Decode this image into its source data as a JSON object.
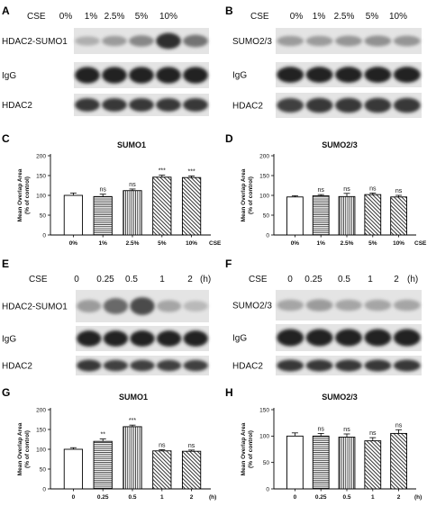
{
  "panels": {
    "A": {
      "letter": "A",
      "head": "CSE",
      "lanes": [
        "0%",
        "1%",
        "2.5%",
        "5%",
        "10%"
      ],
      "blots": [
        {
          "label": "HDAC2-SUMO1",
          "intensity": [
            0.25,
            0.35,
            0.45,
            0.9,
            0.55
          ]
        },
        {
          "label": "IgG",
          "intensity": [
            0.95,
            0.95,
            0.95,
            0.95,
            0.95
          ]
        },
        {
          "label": "HDAC2",
          "intensity": [
            0.85,
            0.85,
            0.85,
            0.85,
            0.85
          ]
        }
      ]
    },
    "B": {
      "letter": "B",
      "head": "CSE",
      "lanes": [
        "0%",
        "1%",
        "2.5%",
        "5%",
        "10%"
      ],
      "blots": [
        {
          "label": "SUMO2/3",
          "intensity": [
            0.35,
            0.35,
            0.38,
            0.4,
            0.38
          ]
        },
        {
          "label": "IgG",
          "intensity": [
            0.95,
            0.95,
            0.95,
            0.95,
            0.95
          ]
        },
        {
          "label": "HDAC2",
          "intensity": [
            0.8,
            0.85,
            0.85,
            0.85,
            0.85
          ]
        }
      ]
    },
    "E": {
      "letter": "E",
      "head": "CSE",
      "lanes": [
        "0",
        "0.25",
        "0.5",
        "1",
        "2"
      ],
      "unit": "(h)",
      "blots": [
        {
          "label": "HDAC2-SUMO1",
          "intensity": [
            0.35,
            0.6,
            0.75,
            0.3,
            0.2
          ]
        },
        {
          "label": "IgG",
          "intensity": [
            0.95,
            0.95,
            0.95,
            0.95,
            0.95
          ]
        },
        {
          "label": "HDAC2",
          "intensity": [
            0.85,
            0.8,
            0.8,
            0.8,
            0.8
          ]
        }
      ]
    },
    "F": {
      "letter": "F",
      "head": "CSE",
      "lanes": [
        "0",
        "0.25",
        "0.5",
        "1",
        "2"
      ],
      "unit": "(h)",
      "blots": [
        {
          "label": "SUMO2/3",
          "intensity": [
            0.3,
            0.35,
            0.3,
            0.3,
            0.3
          ]
        },
        {
          "label": "IgG",
          "intensity": [
            0.95,
            0.95,
            0.95,
            0.95,
            0.95
          ]
        },
        {
          "label": "HDAC2",
          "intensity": [
            0.85,
            0.85,
            0.85,
            0.85,
            0.85
          ]
        }
      ]
    }
  },
  "chart_data": [
    {
      "panel": "C",
      "type": "bar",
      "title": "SUMO1",
      "ylabel": "Mean Overlap Area",
      "ylabel2": "(% of control)",
      "categories": [
        "0%",
        "1%",
        "2.5%",
        "5%",
        "10%"
      ],
      "xunit": "CSE",
      "values": [
        100,
        97,
        112,
        146,
        145
      ],
      "errors": [
        6,
        6,
        4,
        5,
        4
      ],
      "significance": [
        "",
        "ns",
        "ns",
        "***",
        "***"
      ],
      "patterns": [
        "none",
        "horizontal",
        "vertical",
        "diagonal",
        "diagonal"
      ],
      "ylim": [
        0,
        200
      ],
      "yticks": [
        0,
        50,
        100,
        150,
        200
      ]
    },
    {
      "panel": "D",
      "type": "bar",
      "title": "SUMO2/3",
      "ylabel": "Mean Overlap Area",
      "ylabel2": "(% of control)",
      "categories": [
        "0%",
        "1%",
        "2.5%",
        "5%",
        "10%"
      ],
      "xunit": "CSE",
      "values": [
        96,
        99,
        97,
        102,
        96
      ],
      "errors": [
        3,
        3,
        8,
        4,
        4
      ],
      "significance": [
        "",
        "ns",
        "ns",
        "ns",
        "ns"
      ],
      "patterns": [
        "none",
        "horizontal",
        "vertical",
        "diagonal",
        "diagonal"
      ],
      "ylim": [
        0,
        200
      ],
      "yticks": [
        0,
        50,
        100,
        150,
        200
      ]
    },
    {
      "panel": "G",
      "type": "bar",
      "title": "SUMO1",
      "ylabel": "Mean Overlap Area",
      "ylabel2": "(% of control)",
      "categories": [
        "0",
        "0.25",
        "0.5",
        "1",
        "2"
      ],
      "xunit": "(h)",
      "values": [
        100,
        120,
        157,
        96,
        95
      ],
      "errors": [
        4,
        6,
        4,
        3,
        3
      ],
      "significance": [
        "",
        "**",
        "***",
        "ns",
        "ns"
      ],
      "patterns": [
        "none",
        "horizontal",
        "vertical",
        "diagonal",
        "diagonal"
      ],
      "ylim": [
        0,
        200
      ],
      "yticks": [
        0,
        50,
        100,
        150,
        200
      ]
    },
    {
      "panel": "H",
      "type": "bar",
      "title": "SUMO2/3",
      "ylabel": "Mean Overlap Area",
      "ylabel2": "(% of control)",
      "categories": [
        "0",
        "0.25",
        "0.5",
        "1",
        "2"
      ],
      "xunit": "(h)",
      "values": [
        100,
        100,
        98,
        91,
        105
      ],
      "errors": [
        6,
        5,
        6,
        6,
        7
      ],
      "significance": [
        "",
        "ns",
        "ns",
        "ns",
        "ns"
      ],
      "patterns": [
        "none",
        "horizontal",
        "vertical",
        "diagonal",
        "diagonal"
      ],
      "ylim": [
        0,
        150
      ],
      "yticks": [
        0,
        50,
        100,
        150
      ]
    }
  ]
}
